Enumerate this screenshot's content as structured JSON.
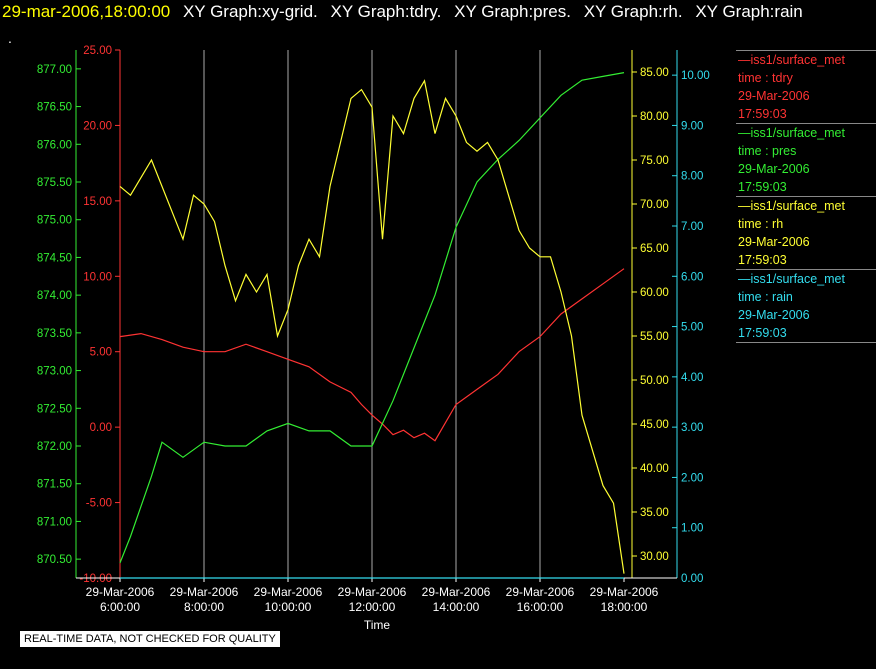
{
  "header": {
    "timestamp": "29-mar-2006,18:00:00",
    "titles": [
      "XY Graph:xy-grid.",
      "XY Graph:tdry.",
      "XY Graph:pres.",
      "XY Graph:rh.",
      "XY Graph:rain"
    ]
  },
  "dot": ".",
  "note": "REAL-TIME DATA, NOT CHECKED FOR QUALITY",
  "legend": [
    {
      "source": "iss1/surface_met",
      "name": "time : tdry",
      "date": "29-Mar-2006",
      "time": "17:59:03",
      "color": "#ff3333"
    },
    {
      "source": "iss1/surface_met",
      "name": "time : pres",
      "date": "29-Mar-2006",
      "time": "17:59:03",
      "color": "#33ee33"
    },
    {
      "source": "iss1/surface_met",
      "name": "time : rh",
      "date": "29-Mar-2006",
      "time": "17:59:03",
      "color": "#ffff33"
    },
    {
      "source": "iss1/surface_met",
      "name": "time : rain",
      "date": "29-Mar-2006",
      "time": "17:59:03",
      "color": "#33ddee"
    }
  ],
  "chart_data": {
    "type": "line",
    "xlabel": "Time",
    "x_ticks": [
      {
        "date": "29-Mar-2006",
        "time": "6:00:00"
      },
      {
        "date": "29-Mar-2006",
        "time": "8:00:00"
      },
      {
        "date": "29-Mar-2006",
        "time": "10:00:00"
      },
      {
        "date": "29-Mar-2006",
        "time": "12:00:00"
      },
      {
        "date": "29-Mar-2006",
        "time": "14:00:00"
      },
      {
        "date": "29-Mar-2006",
        "time": "16:00:00"
      },
      {
        "date": "29-Mar-2006",
        "time": "18:00:00"
      }
    ],
    "x_hours": [
      6,
      18
    ],
    "grid": "vertical",
    "axes": {
      "pres": {
        "range": [
          870.25,
          877.25
        ],
        "ticks": [
          "870.50",
          "871.00",
          "871.50",
          "872.00",
          "872.50",
          "873.00",
          "873.50",
          "874.00",
          "874.50",
          "875.00",
          "875.50",
          "876.00",
          "876.50",
          "877.00"
        ],
        "color": "#33ee33"
      },
      "tdry": {
        "range": [
          -10,
          25
        ],
        "ticks": [
          "-10.00",
          "-5.00",
          "0.00",
          "5.00",
          "10.00",
          "15.00",
          "20.00",
          "25.00"
        ],
        "color": "#ff3333"
      },
      "rh": {
        "range": [
          27.5,
          87.5
        ],
        "ticks": [
          "30.00",
          "35.00",
          "40.00",
          "45.00",
          "50.00",
          "55.00",
          "60.00",
          "65.00",
          "70.00",
          "75.00",
          "80.00",
          "85.00"
        ],
        "color": "#ffff33"
      },
      "rain": {
        "range": [
          0,
          10.5
        ],
        "ticks": [
          "0.00",
          "1.00",
          "2.00",
          "3.00",
          "4.00",
          "5.00",
          "6.00",
          "7.00",
          "8.00",
          "9.00",
          "10.00"
        ],
        "color": "#33ddee"
      }
    },
    "series": [
      {
        "key": "tdry",
        "name": "time : tdry",
        "color": "#ff3333",
        "x": [
          6.0,
          6.5,
          7.0,
          7.5,
          8.0,
          8.5,
          9.0,
          9.5,
          10.0,
          10.5,
          11.0,
          11.5,
          11.75,
          12.0,
          12.25,
          12.5,
          12.75,
          13.0,
          13.25,
          13.5,
          14.0,
          14.5,
          15.0,
          15.5,
          16.0,
          16.5,
          17.0,
          17.5,
          18.0
        ],
        "y": [
          6.0,
          6.2,
          5.8,
          5.3,
          5.0,
          5.0,
          5.5,
          5.0,
          4.5,
          4.0,
          3.0,
          2.3,
          1.5,
          0.8,
          0.2,
          -0.5,
          -0.2,
          -0.7,
          -0.4,
          -0.9,
          1.5,
          2.5,
          3.5,
          5.0,
          6.0,
          7.5,
          8.5,
          9.5,
          10.5
        ]
      },
      {
        "key": "pres",
        "name": "time : pres",
        "color": "#33ee33",
        "x": [
          6.0,
          6.25,
          6.5,
          6.75,
          7.0,
          7.5,
          8.0,
          8.5,
          9.0,
          9.5,
          10.0,
          10.5,
          11.0,
          11.5,
          12.0,
          12.5,
          13.0,
          13.5,
          14.0,
          14.5,
          15.0,
          15.5,
          16.0,
          16.5,
          17.0,
          17.5,
          18.0
        ],
        "y": [
          870.45,
          870.8,
          871.2,
          871.6,
          872.05,
          871.85,
          872.05,
          872.0,
          872.0,
          872.2,
          872.3,
          872.2,
          872.2,
          872.0,
          872.0,
          872.6,
          873.3,
          874.0,
          874.9,
          875.5,
          875.8,
          876.05,
          876.35,
          876.65,
          876.85,
          876.9,
          876.95
        ]
      },
      {
        "key": "rh",
        "name": "time : rh",
        "color": "#ffff33",
        "x": [
          6.0,
          6.25,
          6.5,
          6.75,
          7.0,
          7.25,
          7.5,
          7.75,
          8.0,
          8.25,
          8.5,
          8.75,
          9.0,
          9.25,
          9.5,
          9.75,
          10.0,
          10.25,
          10.5,
          10.75,
          11.0,
          11.25,
          11.5,
          11.75,
          12.0,
          12.25,
          12.5,
          12.75,
          13.0,
          13.25,
          13.5,
          13.75,
          14.0,
          14.25,
          14.5,
          14.75,
          15.0,
          15.25,
          15.5,
          15.75,
          16.0,
          16.25,
          16.5,
          16.75,
          17.0,
          17.25,
          17.5,
          17.75,
          18.0
        ],
        "y": [
          72,
          71,
          73,
          75,
          72,
          69,
          66,
          71,
          70,
          68,
          63,
          59,
          62,
          60,
          62,
          55,
          58,
          63,
          66,
          64,
          72,
          77,
          82,
          83,
          81,
          66,
          80,
          78,
          82,
          84,
          78,
          82,
          80,
          77,
          76,
          77,
          75,
          71,
          67,
          65,
          64,
          64,
          60,
          55,
          46,
          42,
          38,
          36,
          28
        ]
      },
      {
        "key": "rain",
        "name": "time : rain",
        "color": "#33ddee",
        "x": [
          6.0,
          18.0
        ],
        "y": [
          0.0,
          0.0
        ]
      }
    ]
  }
}
